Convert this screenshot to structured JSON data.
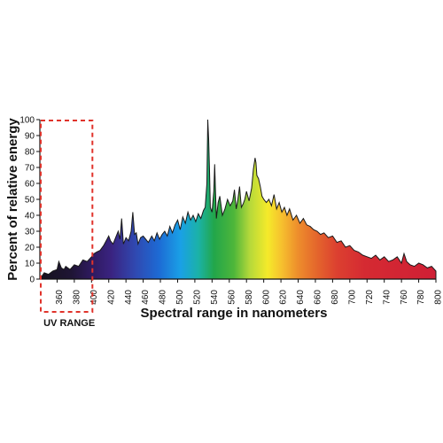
{
  "chart_data": {
    "type": "area",
    "title": "",
    "xlabel": "Spectral range in nanometers",
    "ylabel": "Percent of relative energy",
    "xlim": [
      340,
      800
    ],
    "ylim": [
      0,
      100
    ],
    "x_ticks": [
      360,
      380,
      400,
      420,
      440,
      460,
      480,
      500,
      520,
      540,
      560,
      580,
      600,
      620,
      640,
      660,
      680,
      700,
      720,
      740,
      760,
      780,
      800
    ],
    "y_ticks": [
      0,
      10,
      20,
      30,
      40,
      50,
      60,
      70,
      80,
      90,
      100
    ],
    "annotation": {
      "label": "UV RANGE",
      "x_range": [
        340,
        400
      ]
    },
    "grid": false,
    "fill": "visible spectrum gradient",
    "series": [
      {
        "x": [
          340,
          345,
          350,
          355,
          360,
          362,
          365,
          368,
          370,
          375,
          380,
          385,
          390,
          395,
          400,
          403,
          406,
          410,
          414,
          418,
          420,
          422,
          425,
          428,
          431,
          433,
          435,
          437,
          440,
          443,
          446,
          448,
          450,
          452,
          454,
          457,
          460,
          463,
          466,
          470,
          473,
          476,
          479,
          482,
          485,
          488,
          491,
          494,
          497,
          500,
          503,
          506,
          509,
          512,
          515,
          518,
          521,
          524,
          527,
          530,
          532,
          534,
          535,
          536,
          537,
          538,
          540,
          542,
          543,
          545,
          547,
          549,
          552,
          555,
          558,
          561,
          564,
          566,
          568,
          570,
          572,
          574,
          576,
          578,
          580,
          583,
          586,
          588,
          590,
          591,
          592,
          594,
          596,
          598,
          600,
          603,
          606,
          609,
          612,
          615,
          618,
          621,
          624,
          627,
          630,
          634,
          638,
          642,
          646,
          650,
          654,
          658,
          662,
          666,
          670,
          675,
          680,
          685,
          690,
          695,
          700,
          705,
          710,
          715,
          720,
          725,
          730,
          735,
          740,
          745,
          750,
          755,
          760,
          763,
          766,
          770,
          775,
          780,
          785,
          790,
          795,
          800
        ],
        "values": [
          0,
          4,
          3,
          5,
          6,
          11,
          7,
          6,
          8,
          6,
          9,
          8,
          12,
          11,
          14,
          16,
          17,
          18,
          21,
          25,
          27,
          24,
          22,
          26,
          30,
          25,
          38,
          22,
          26,
          24,
          30,
          42,
          28,
          29,
          22,
          26,
          27,
          25,
          23,
          27,
          24,
          29,
          25,
          28,
          30,
          27,
          33,
          29,
          34,
          37,
          31,
          39,
          35,
          42,
          37,
          40,
          36,
          41,
          38,
          43,
          45,
          60,
          100,
          88,
          70,
          45,
          42,
          55,
          72,
          38,
          48,
          52,
          40,
          44,
          50,
          46,
          49,
          56,
          44,
          50,
          58,
          45,
          47,
          50,
          55,
          49,
          57,
          69,
          76,
          73,
          65,
          63,
          58,
          52,
          50,
          48,
          50,
          46,
          53,
          44,
          48,
          42,
          45,
          40,
          44,
          37,
          40,
          35,
          38,
          34,
          33,
          31,
          30,
          28,
          29,
          26,
          27,
          23,
          24,
          20,
          21,
          18,
          17,
          15,
          14,
          13,
          15,
          12,
          14,
          11,
          12,
          14,
          10,
          16,
          11,
          9,
          8,
          10,
          9,
          7,
          8,
          5
        ]
      }
    ]
  }
}
